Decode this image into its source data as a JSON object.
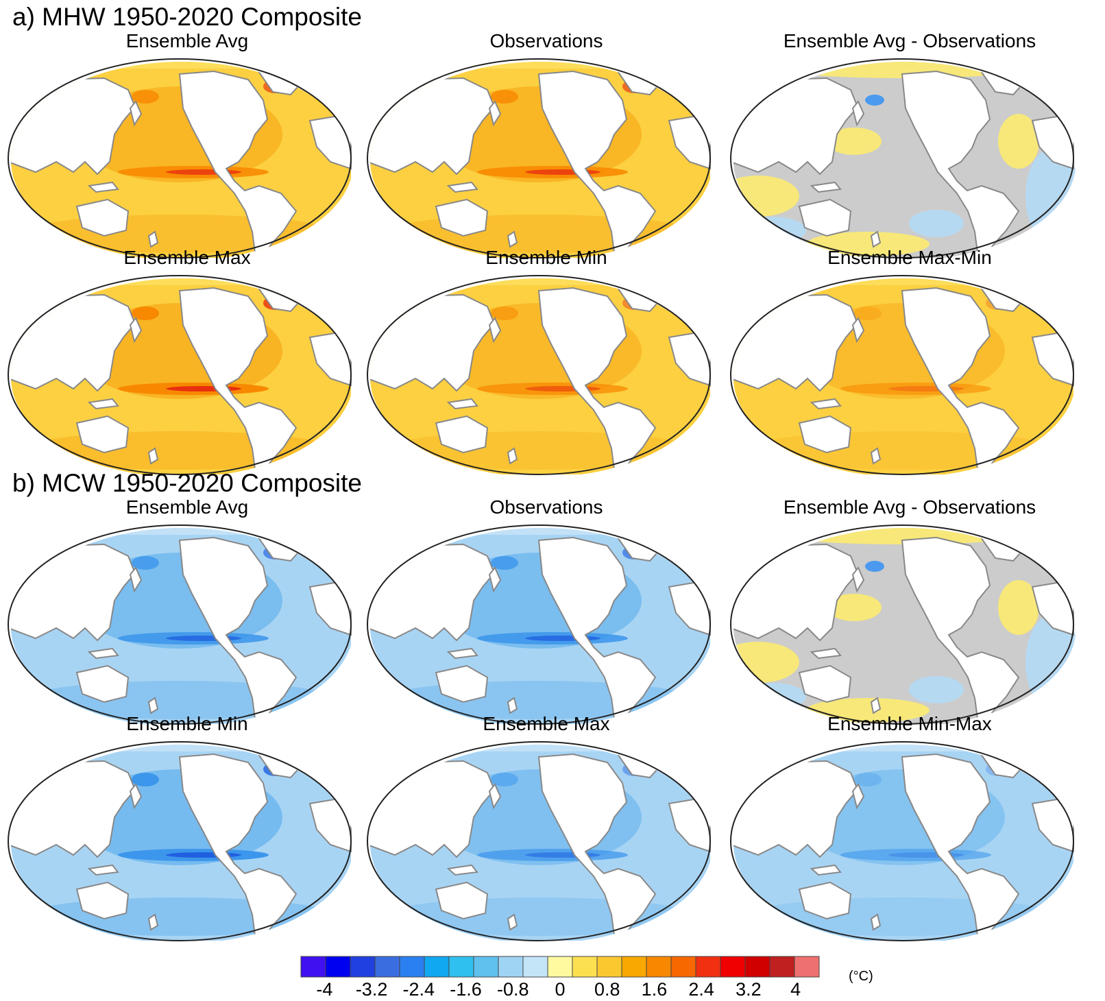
{
  "sections": [
    {
      "title": "a) MHW 1950-2020 Composite",
      "panels": [
        {
          "title": "Ensemble Avg",
          "scheme": "warm",
          "intensity": "strong"
        },
        {
          "title": "Observations",
          "scheme": "warm",
          "intensity": "strong"
        },
        {
          "title": "Ensemble Avg - Observations",
          "scheme": "diff",
          "intensity": "mixed"
        },
        {
          "title": "Ensemble Max",
          "scheme": "warm",
          "intensity": "very strong"
        },
        {
          "title": "Ensemble Min",
          "scheme": "warm",
          "intensity": "moderate"
        },
        {
          "title": "Ensemble Max-Min",
          "scheme": "warm",
          "intensity": "weak"
        }
      ]
    },
    {
      "title": "b) MCW 1950-2020 Composite",
      "panels": [
        {
          "title": "Ensemble Avg",
          "scheme": "cool",
          "intensity": "strong"
        },
        {
          "title": "Observations",
          "scheme": "cool",
          "intensity": "strong"
        },
        {
          "title": "Ensemble Avg - Observations",
          "scheme": "diff",
          "intensity": "mixed"
        },
        {
          "title": "Ensemble Min",
          "scheme": "cool",
          "intensity": "very strong"
        },
        {
          "title": "Ensemble Max",
          "scheme": "cool",
          "intensity": "moderate"
        },
        {
          "title": "Ensemble Min-Max",
          "scheme": "cool",
          "intensity": "weak"
        }
      ]
    }
  ],
  "colorbar": {
    "unit": "(°C)",
    "min": -4.4,
    "max": 4.4,
    "step": 0.4,
    "colors": [
      "#4010f0",
      "#0000f0",
      "#2040e0",
      "#3a6ee0",
      "#2a80f0",
      "#10a8f0",
      "#30c0f0",
      "#60c0ee",
      "#a0d4f4",
      "#c4e4f8",
      "#fffaa0",
      "#fce050",
      "#fcc830",
      "#f8a800",
      "#f88800",
      "#f86800",
      "#f03010",
      "#f00000",
      "#d00000",
      "#c02020",
      "#ef7070"
    ],
    "tick_labels": [
      "-4",
      "-3.2",
      "-2.4",
      "-1.6",
      "-0.8",
      "0",
      "0.8",
      "1.6",
      "2.4",
      "3.2",
      "4"
    ],
    "tick_values": [
      -4,
      -3.2,
      -2.4,
      -1.6,
      -0.8,
      0,
      0.8,
      1.6,
      2.4,
      3.2,
      4
    ]
  },
  "map_colors": {
    "land": "#ffffff",
    "coast": "#888888",
    "frame": "#222222",
    "warm": {
      "base": "#fcd040",
      "mid": "#f8b020",
      "high": "#f88800",
      "peak": "#e83010",
      "polar": "#fce060"
    },
    "cool": {
      "base": "#a8d4f4",
      "mid": "#70b8ee",
      "high": "#3c96ec",
      "peak": "#2060e0",
      "polar": "#c8e4f8"
    },
    "diff": {
      "base": "#cccccc",
      "pos": "#fceb70",
      "neg": "#b4daf6",
      "peak": "#4b9af0"
    }
  }
}
